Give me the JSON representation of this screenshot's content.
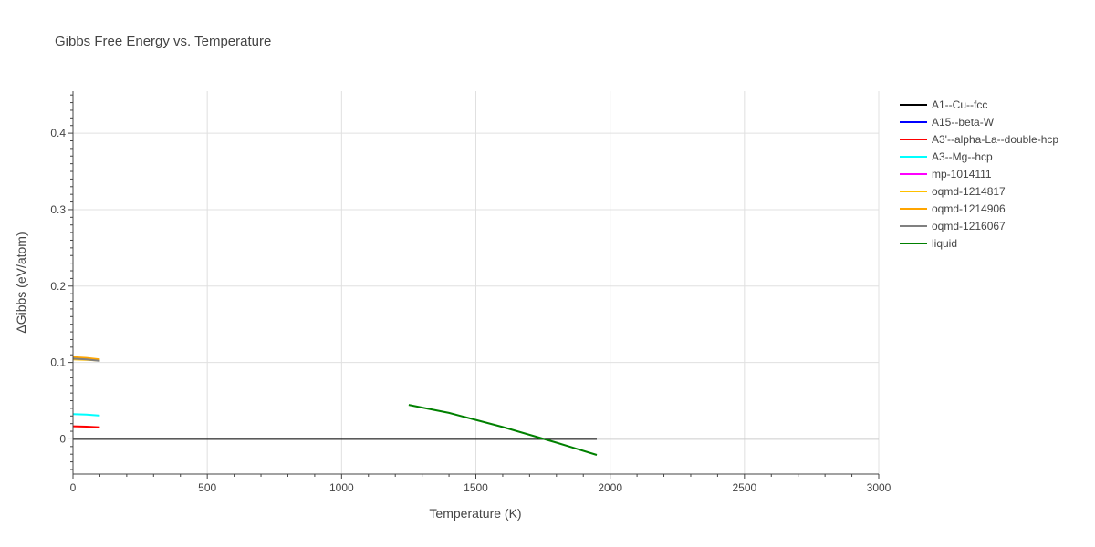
{
  "chart_data": {
    "type": "line",
    "title": "Gibbs Free Energy vs. Temperature",
    "xlabel": "Temperature (K)",
    "ylabel": "ΔGibbs (eV/atom)",
    "xlim": [
      0,
      3000
    ],
    "ylim": [
      -0.046,
      0.455
    ],
    "xticks": [
      0,
      500,
      1000,
      1500,
      2000,
      2500,
      3000
    ],
    "xtick_labels": [
      "0",
      "500",
      "1000",
      "1500",
      "2000",
      "2500",
      "3000"
    ],
    "yticks": [
      0,
      0.1,
      0.2,
      0.3,
      0.4
    ],
    "ytick_labels": [
      "0",
      "0.1",
      "0.2",
      "0.3",
      "0.4"
    ],
    "grid": true,
    "legend_position": "right",
    "reference_line": {
      "y": 0,
      "x": [
        0,
        3000
      ],
      "color": "#cccccc"
    },
    "series": [
      {
        "name": "A1--Cu--fcc",
        "color": "#000000",
        "x": [
          0,
          1950
        ],
        "y": [
          0,
          0
        ]
      },
      {
        "name": "A15--beta-W",
        "color": "#0000ff",
        "x": [],
        "y": []
      },
      {
        "name": "A3'--alpha-La--double-hcp",
        "color": "#ff0000",
        "x": [
          0,
          50,
          100
        ],
        "y": [
          0.0165,
          0.016,
          0.0152
        ]
      },
      {
        "name": "A3--Mg--hcp",
        "color": "#00ffff",
        "x": [
          0,
          50,
          100
        ],
        "y": [
          0.0325,
          0.0318,
          0.0305
        ]
      },
      {
        "name": "mp-1014111",
        "color": "#ff00ff",
        "x": [],
        "y": []
      },
      {
        "name": "oqmd-1214817",
        "color": "#ffc000",
        "x": [
          0,
          50,
          100
        ],
        "y": [
          0.104,
          0.1035,
          0.1025
        ]
      },
      {
        "name": "oqmd-1214906",
        "color": "#ffa500",
        "x": [
          0,
          50,
          100
        ],
        "y": [
          0.107,
          0.106,
          0.104
        ]
      },
      {
        "name": "oqmd-1216067",
        "color": "#808080",
        "x": [
          0,
          50,
          100
        ],
        "y": [
          0.105,
          0.104,
          0.102
        ]
      },
      {
        "name": "liquid",
        "color": "#008000",
        "x": [
          1250,
          1400,
          1600,
          1800,
          1950
        ],
        "y": [
          0.0445,
          0.034,
          0.0155,
          -0.0048,
          -0.021
        ]
      }
    ]
  }
}
